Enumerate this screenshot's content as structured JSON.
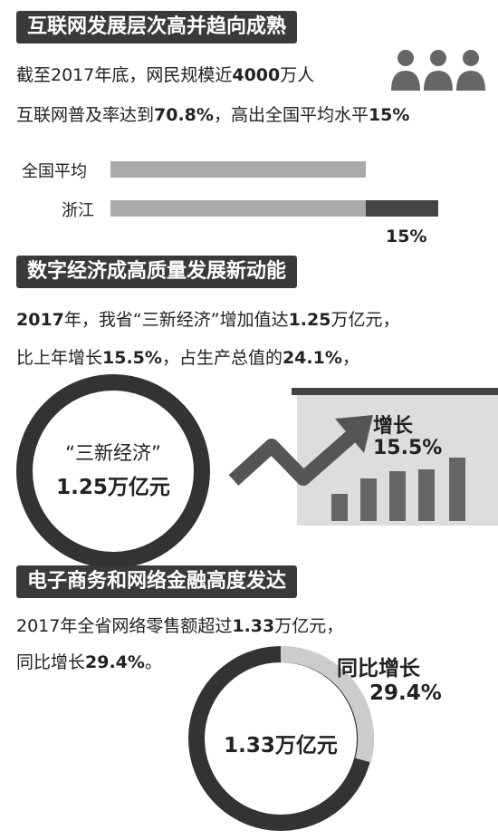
{
  "sections": [
    {
      "heading": "互联网发展层次高并趋向成熟",
      "lines": [
        [
          "截至2017年底，网民规模近",
          "4000",
          "万人"
        ],
        [
          "互联网普及率达到",
          "70.8%",
          "，高出全国平均水平",
          "15%"
        ]
      ],
      "bars": {
        "national": "全国平均",
        "zhejiang": "浙江",
        "difference": "15%"
      }
    },
    {
      "heading": "数字经济成高质量发展新动能",
      "lines": [
        [
          "",
          "2017",
          "年，我省“三新经济”增加值达",
          "1.25",
          "万亿元，"
        ],
        [
          "比上年增长",
          "15.5%",
          "，占生产总值的",
          "24.1%",
          "，"
        ]
      ],
      "ring": [
        "“三新经济”",
        "1.25万亿元"
      ],
      "card": [
        "增长",
        "15.5%"
      ]
    },
    {
      "heading": "电子商务和网络金融高度发达",
      "lines": [
        [
          "2017年全省网络零售额超过",
          "1.33",
          "万亿元，"
        ],
        [
          "同比增长",
          "29.4%",
          "。"
        ]
      ],
      "donut_center": "1.33万亿元",
      "donut_label": [
        "同比增长",
        "29.4%"
      ]
    }
  ]
}
